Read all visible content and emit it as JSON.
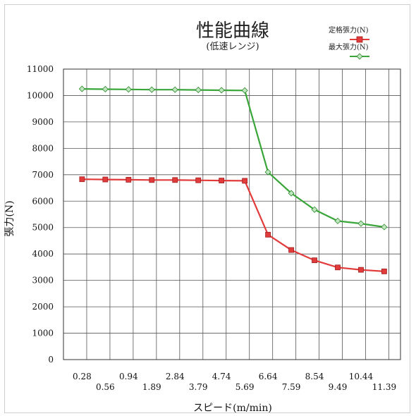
{
  "chart_data": {
    "type": "line",
    "title": "性能曲線",
    "subtitle": "(低速レンジ)",
    "xlabel": "スピード(m/min)",
    "ylabel": "張力(N)",
    "categories": [
      "0.28",
      "0.56",
      "0.94",
      "1.89",
      "2.84",
      "3.79",
      "4.74",
      "5.69",
      "6.64",
      "7.59",
      "8.54",
      "9.49",
      "10.44",
      "11.39"
    ],
    "ylim": [
      0,
      11000
    ],
    "yticks": [
      "0",
      "1000",
      "2000",
      "3000",
      "4000",
      "5000",
      "6000",
      "7000",
      "8000",
      "9000",
      "10000",
      "11000"
    ],
    "grid": true,
    "legend_position": "top-right",
    "series": [
      {
        "name": "定格張力(N)",
        "color": "#e23b3b",
        "marker": "square",
        "values": [
          6830,
          6820,
          6810,
          6800,
          6800,
          6790,
          6780,
          6770,
          4730,
          4150,
          3760,
          3490,
          3400,
          3340
        ]
      },
      {
        "name": "最大張力(N)",
        "color": "#3aa63a",
        "marker": "diamond",
        "values": [
          10250,
          10240,
          10230,
          10220,
          10220,
          10210,
          10200,
          10190,
          7100,
          6300,
          5680,
          5250,
          5150,
          5020
        ]
      }
    ]
  }
}
